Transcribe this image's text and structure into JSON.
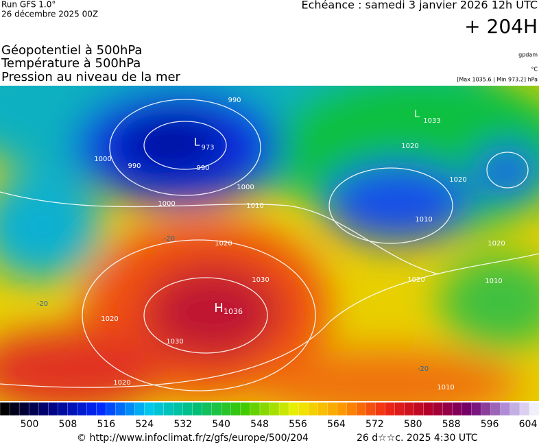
{
  "header": {
    "run": "Run GFS 1.0°",
    "date": "26 décembre 2025 00Z",
    "valid": "Echéance : samedi 3 janvier 2026 12h UTC",
    "lead": "+ 204H"
  },
  "titles": [
    "Géopotentiel à 500hPa",
    "Température à 500hPa",
    "Pression au niveau de la mer"
  ],
  "units": [
    "gpdam",
    "°C",
    "[Max 1035.6 | Min 973.2] hPa"
  ],
  "map_labels": [
    "990",
    "L",
    "973",
    "990",
    "990",
    "1000",
    "1000",
    "1000",
    "1010",
    "1020",
    "1030",
    "H",
    "1036",
    "1030",
    "1020",
    "1020",
    "L",
    "1033",
    "1020",
    "1020",
    "1020",
    "1010",
    "1020",
    "1010",
    "-20",
    "-20",
    "-20",
    "1010"
  ],
  "colorbar": {
    "labels": [
      500,
      508,
      516,
      524,
      532,
      540,
      548,
      556,
      564,
      572,
      580,
      588,
      596,
      604
    ]
  },
  "footer": {
    "credit": "© http://www.infoclimat.fr/z/gfs/europe/500/204",
    "stamp": "26 d☆☆c. 2025  4:30 UTC"
  }
}
